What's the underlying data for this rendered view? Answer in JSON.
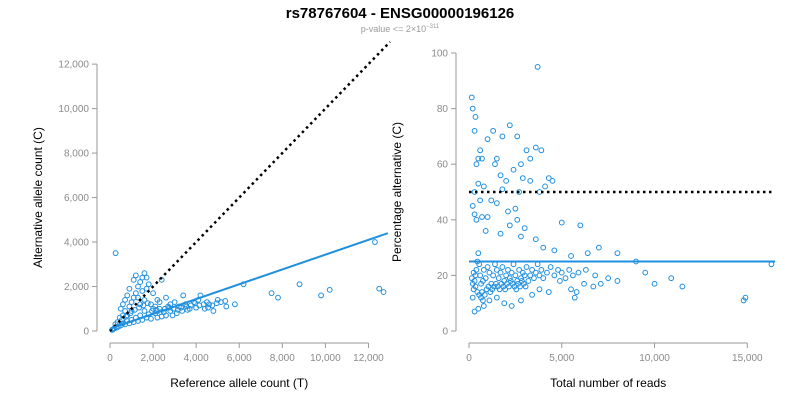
{
  "title": "rs78767604 - ENSG00000196126",
  "subtitle": {
    "prefix": "p-value <= 2×10",
    "exponent": "−311"
  },
  "colors": {
    "points": "#1f8fe0",
    "trend": "#1f8fe0",
    "reference": "#000000",
    "axis": "#9a9a9a"
  },
  "chart_data": [
    {
      "type": "scatter",
      "xlabel": "Reference allele count (T)",
      "ylabel": "Alternative allele count (C)",
      "xlim": [
        0,
        13000
      ],
      "ylim": [
        0,
        12500
      ],
      "xticks": [
        0,
        2000,
        4000,
        6000,
        8000,
        10000,
        12000
      ],
      "yticks": [
        0,
        2000,
        4000,
        6000,
        8000,
        10000,
        12000
      ],
      "xtick_labels": [
        "0",
        "2,000",
        "4,000",
        "6,000",
        "8,000",
        "10,000",
        "12,000"
      ],
      "ytick_labels": [
        "0",
        "2,000",
        "4,000",
        "6,000",
        "8,000",
        "10,000",
        "12,000"
      ],
      "reference_line": {
        "style": "dotted",
        "x": [
          0,
          13000
        ],
        "y": [
          0,
          13000
        ]
      },
      "trend_line": {
        "style": "solid",
        "x": [
          0,
          12900
        ],
        "y": [
          100,
          4400
        ]
      },
      "points": [
        [
          260,
          3500
        ],
        [
          12500,
          1900
        ],
        [
          12700,
          1750
        ],
        [
          12300,
          4000
        ],
        [
          8800,
          2100
        ],
        [
          9800,
          1600
        ],
        [
          10200,
          1850
        ],
        [
          7500,
          1700
        ],
        [
          7800,
          1500
        ],
        [
          6200,
          2100
        ],
        [
          5800,
          1200
        ],
        [
          5400,
          1100
        ],
        [
          4800,
          900
        ],
        [
          4600,
          1200
        ],
        [
          4400,
          1000
        ],
        [
          5000,
          1400
        ],
        [
          4200,
          1600
        ],
        [
          4000,
          1050
        ],
        [
          3900,
          1300
        ],
        [
          3600,
          950
        ],
        [
          3400,
          1600
        ],
        [
          3300,
          1050
        ],
        [
          3100,
          800
        ],
        [
          3000,
          1300
        ],
        [
          2900,
          700
        ],
        [
          2800,
          900
        ],
        [
          2700,
          1100
        ],
        [
          2600,
          700
        ],
        [
          2500,
          850
        ],
        [
          2400,
          650
        ],
        [
          2400,
          2300
        ],
        [
          2300,
          1000
        ],
        [
          2200,
          600
        ],
        [
          2100,
          800
        ],
        [
          2000,
          1000
        ],
        [
          1900,
          550
        ],
        [
          1800,
          750
        ],
        [
          1700,
          600
        ],
        [
          1600,
          900
        ],
        [
          1500,
          500
        ],
        [
          1400,
          700
        ],
        [
          1300,
          450
        ],
        [
          1200,
          600
        ],
        [
          1100,
          400
        ],
        [
          1000,
          500
        ],
        [
          900,
          350
        ],
        [
          800,
          450
        ],
        [
          700,
          300
        ],
        [
          600,
          350
        ],
        [
          500,
          250
        ],
        [
          400,
          200
        ],
        [
          300,
          150
        ],
        [
          200,
          120
        ],
        [
          150,
          80
        ],
        [
          100,
          50
        ],
        [
          900,
          1100
        ],
        [
          1000,
          1300
        ],
        [
          1100,
          1500
        ],
        [
          1200,
          1700
        ],
        [
          1300,
          2000
        ],
        [
          1400,
          2200
        ],
        [
          1500,
          2400
        ],
        [
          1600,
          2600
        ],
        [
          1700,
          2400
        ],
        [
          1800,
          2100
        ],
        [
          1200,
          2500
        ],
        [
          1100,
          2300
        ],
        [
          900,
          1900
        ],
        [
          800,
          1600
        ],
        [
          700,
          1400
        ],
        [
          600,
          1200
        ],
        [
          500,
          1000
        ],
        [
          1500,
          1800
        ],
        [
          1700,
          1900
        ],
        [
          2000,
          1700
        ],
        [
          1300,
          1500
        ],
        [
          1600,
          1400
        ],
        [
          1000,
          900
        ],
        [
          800,
          700
        ],
        [
          1400,
          1200
        ],
        [
          2200,
          1400
        ],
        [
          2600,
          1500
        ],
        [
          2800,
          1200
        ],
        [
          3200,
          1100
        ],
        [
          3500,
          1200
        ],
        [
          3700,
          1000
        ],
        [
          4100,
          1400
        ],
        [
          4500,
          1300
        ],
        [
          1900,
          1200
        ],
        [
          2100,
          1100
        ],
        [
          2300,
          1300
        ],
        [
          700,
          900
        ],
        [
          600,
          700
        ],
        [
          450,
          600
        ],
        [
          350,
          400
        ],
        [
          250,
          300
        ],
        [
          550,
          500
        ],
        [
          750,
          650
        ],
        [
          950,
          800
        ],
        [
          1150,
          950
        ],
        [
          1350,
          1050
        ],
        [
          1550,
          1150
        ],
        [
          1750,
          1250
        ],
        [
          1950,
          900
        ],
        [
          2150,
          950
        ],
        [
          2350,
          850
        ],
        [
          2550,
          1000
        ],
        [
          2750,
          1050
        ],
        [
          2950,
          1000
        ],
        [
          3150,
          950
        ],
        [
          3350,
          900
        ],
        [
          3550,
          1100
        ],
        [
          3750,
          1150
        ],
        [
          3950,
          1250
        ],
        [
          4150,
          1150
        ],
        [
          4350,
          1200
        ],
        [
          4550,
          1050
        ],
        [
          4750,
          1150
        ],
        [
          4950,
          1250
        ],
        [
          5150,
          1300
        ],
        [
          5350,
          1350
        ]
      ]
    },
    {
      "type": "scatter",
      "xlabel": "Total number of reads",
      "ylabel": "Percentage alternative (C)",
      "xlim": [
        0,
        16600
      ],
      "ylim": [
        0,
        100
      ],
      "xticks": [
        0,
        5000,
        10000,
        15000
      ],
      "yticks": [
        0,
        20,
        40,
        60,
        80,
        100
      ],
      "xtick_labels": [
        "0",
        "5,000",
        "10,000",
        "15,000"
      ],
      "ytick_labels": [
        "0",
        "20",
        "40",
        "60",
        "80",
        "100"
      ],
      "reference_line": {
        "style": "dotted",
        "x": [
          0,
          16300
        ],
        "y": [
          50,
          50
        ]
      },
      "trend_line": {
        "style": "solid",
        "x": [
          0,
          16500
        ],
        "y": [
          25,
          25
        ]
      },
      "points": [
        [
          150,
          84
        ],
        [
          200,
          80
        ],
        [
          350,
          77
        ],
        [
          300,
          72
        ],
        [
          3700,
          95
        ],
        [
          1300,
          72
        ],
        [
          2200,
          74
        ],
        [
          2600,
          70
        ],
        [
          1800,
          70
        ],
        [
          1000,
          69
        ],
        [
          3600,
          66
        ],
        [
          3900,
          65
        ],
        [
          3100,
          65
        ],
        [
          3300,
          62
        ],
        [
          500,
          62
        ],
        [
          600,
          65
        ],
        [
          700,
          62
        ],
        [
          400,
          60
        ],
        [
          2800,
          60
        ],
        [
          2400,
          58
        ],
        [
          1500,
          62
        ],
        [
          1400,
          60
        ],
        [
          1700,
          56
        ],
        [
          2000,
          54
        ],
        [
          2900,
          55
        ],
        [
          3300,
          54
        ],
        [
          4300,
          55
        ],
        [
          4500,
          54
        ],
        [
          4100,
          52
        ],
        [
          3800,
          50
        ],
        [
          2700,
          50
        ],
        [
          1800,
          51
        ],
        [
          800,
          52
        ],
        [
          500,
          53
        ],
        [
          300,
          50
        ],
        [
          600,
          47
        ],
        [
          1200,
          47
        ],
        [
          1500,
          46
        ],
        [
          2100,
          43
        ],
        [
          2500,
          44
        ],
        [
          2600,
          40
        ],
        [
          1000,
          41
        ],
        [
          700,
          41
        ],
        [
          400,
          40
        ],
        [
          2200,
          38
        ],
        [
          3000,
          37
        ],
        [
          5000,
          39
        ],
        [
          6000,
          38
        ],
        [
          900,
          36
        ],
        [
          1700,
          35
        ],
        [
          2800,
          34
        ],
        [
          3600,
          33
        ],
        [
          200,
          45
        ],
        [
          300,
          42
        ],
        [
          4000,
          30
        ],
        [
          4600,
          29
        ],
        [
          7000,
          30
        ],
        [
          5500,
          27
        ],
        [
          6400,
          28
        ],
        [
          8000,
          28
        ],
        [
          9000,
          25
        ],
        [
          16300,
          24
        ],
        [
          14800,
          11
        ],
        [
          14900,
          12
        ],
        [
          11500,
          16
        ],
        [
          10900,
          19
        ],
        [
          10000,
          17
        ],
        [
          9500,
          21
        ],
        [
          8000,
          18
        ],
        [
          7100,
          17
        ],
        [
          6700,
          16
        ],
        [
          6200,
          17
        ],
        [
          5800,
          14
        ],
        [
          5700,
          12
        ],
        [
          5500,
          15
        ],
        [
          4900,
          18
        ],
        [
          4300,
          14
        ],
        [
          3800,
          15
        ],
        [
          3400,
          13
        ],
        [
          2800,
          11
        ],
        [
          2300,
          9
        ],
        [
          1900,
          10
        ],
        [
          1500,
          12
        ],
        [
          1100,
          11
        ],
        [
          800,
          9
        ],
        [
          500,
          8
        ],
        [
          300,
          7
        ],
        [
          200,
          12
        ],
        [
          250,
          15
        ],
        [
          300,
          18
        ],
        [
          350,
          20
        ],
        [
          400,
          22
        ],
        [
          450,
          25
        ],
        [
          500,
          28
        ],
        [
          550,
          24
        ],
        [
          600,
          20
        ],
        [
          650,
          17
        ],
        [
          700,
          14
        ],
        [
          750,
          18
        ],
        [
          800,
          22
        ],
        [
          900,
          19
        ],
        [
          1000,
          23
        ],
        [
          1100,
          21
        ],
        [
          1200,
          17
        ],
        [
          1300,
          20
        ],
        [
          1400,
          24
        ],
        [
          1500,
          22
        ],
        [
          1600,
          19
        ],
        [
          1700,
          21
        ],
        [
          1800,
          23
        ],
        [
          1900,
          18
        ],
        [
          2000,
          20
        ],
        [
          2100,
          22
        ],
        [
          2200,
          19
        ],
        [
          2300,
          21
        ],
        [
          2400,
          24
        ],
        [
          2500,
          20
        ],
        [
          2600,
          18
        ],
        [
          2700,
          22
        ],
        [
          2800,
          19
        ],
        [
          2900,
          21
        ],
        [
          3000,
          20
        ],
        [
          3100,
          23
        ],
        [
          3200,
          18
        ],
        [
          3300,
          20
        ],
        [
          3400,
          22
        ],
        [
          3500,
          19
        ],
        [
          3600,
          21
        ],
        [
          3700,
          24
        ],
        [
          3800,
          20
        ],
        [
          3900,
          22
        ],
        [
          4000,
          19
        ],
        [
          4200,
          21
        ],
        [
          4400,
          23
        ],
        [
          4600,
          20
        ],
        [
          4800,
          22
        ],
        [
          5000,
          21
        ],
        [
          5200,
          19
        ],
        [
          5400,
          22
        ],
        [
          5600,
          20
        ],
        [
          5900,
          21
        ],
        [
          6300,
          22
        ],
        [
          6800,
          20
        ],
        [
          7500,
          19
        ],
        [
          150,
          19
        ],
        [
          200,
          17
        ],
        [
          250,
          21
        ],
        [
          350,
          16
        ],
        [
          450,
          14
        ],
        [
          550,
          13
        ],
        [
          650,
          12
        ],
        [
          750,
          11
        ],
        [
          850,
          13
        ],
        [
          950,
          15
        ],
        [
          1050,
          16
        ],
        [
          1150,
          14
        ],
        [
          1250,
          15
        ],
        [
          1350,
          16
        ],
        [
          1450,
          17
        ],
        [
          1550,
          16
        ],
        [
          1650,
          15
        ],
        [
          1750,
          17
        ],
        [
          1850,
          16
        ],
        [
          1950,
          15
        ],
        [
          2050,
          17
        ],
        [
          2150,
          16
        ],
        [
          2250,
          18
        ],
        [
          2350,
          17
        ],
        [
          2450,
          16
        ],
        [
          2550,
          15
        ],
        [
          2650,
          17
        ],
        [
          2750,
          16
        ],
        [
          2850,
          18
        ],
        [
          2950,
          17
        ],
        [
          3050,
          16
        ]
      ]
    }
  ]
}
